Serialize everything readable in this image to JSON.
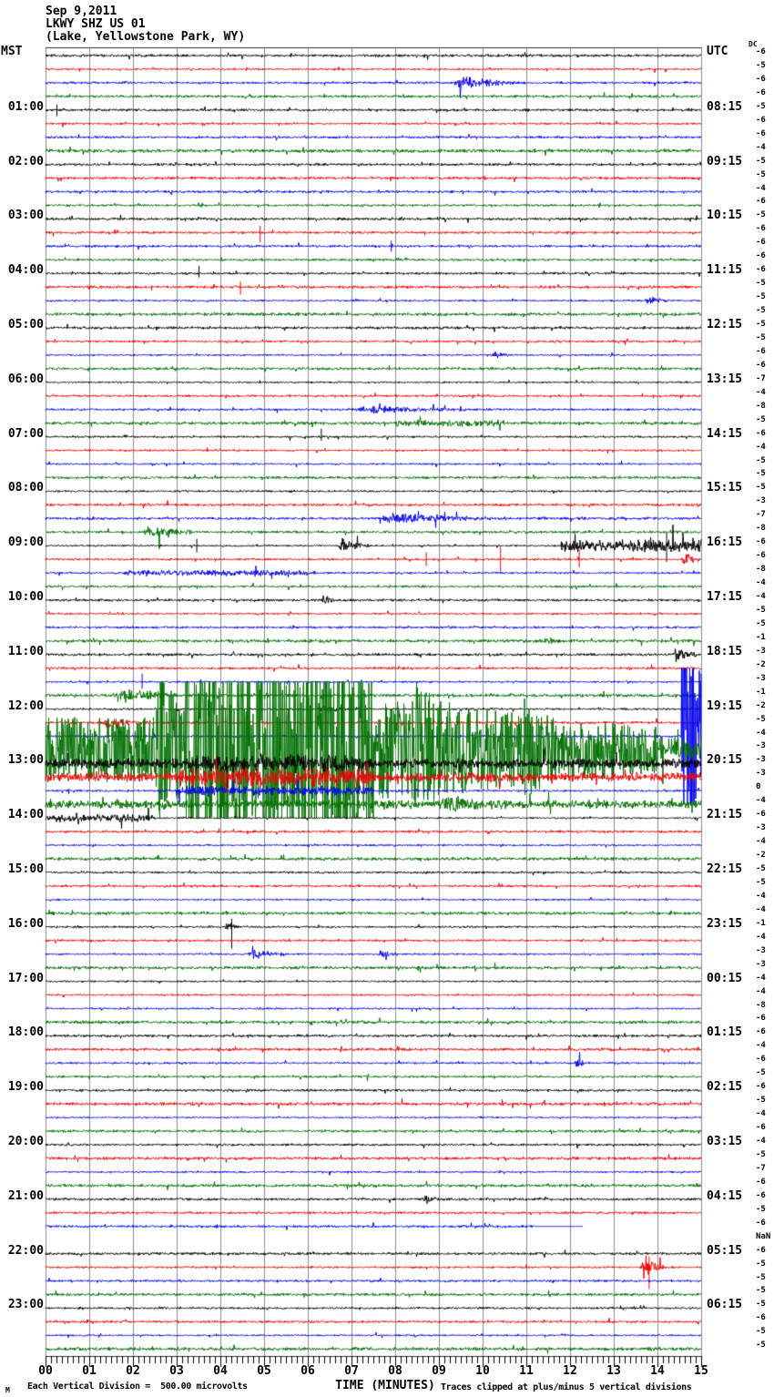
{
  "header": {
    "date": "Sep 9,2011",
    "station": "LKWY SHZ US 01",
    "location": "(Lake, Yellowstone Park, WY)"
  },
  "axes": {
    "left_tz": "MST",
    "right_tz": "UTC",
    "dc_label": "DC",
    "xlabel": "TIME (MINUTES)",
    "minute_labels": [
      "00",
      "01",
      "02",
      "03",
      "04",
      "05",
      "06",
      "07",
      "08",
      "09",
      "10",
      "11",
      "12",
      "13",
      "14",
      "15"
    ]
  },
  "footer": {
    "scale_note": "Each Vertical Division =  500.00 microvolts",
    "clip_note": "Traces clipped at plus/minus 5 vertical divisions",
    "watermark": "M"
  },
  "chart_data": {
    "type": "line",
    "subtype": "helicorder-seismogram",
    "title": "LKWY SHZ US 01 (Lake, Yellowstone Park, WY) Sep 9,2011",
    "xlabel": "TIME (MINUTES)",
    "xlim": [
      0,
      15
    ],
    "minutes_per_line": 15,
    "rows": 96,
    "first_row_start_mst": "00:00",
    "row_interval_minutes": 15,
    "division_microvolts": 500.0,
    "clip_divisions": 5,
    "grid": true,
    "trace_colors_cycle": [
      "#000000",
      "#f00000",
      "#0000ee",
      "#007000"
    ],
    "grid_color": "#8a8a8a",
    "mst_hour_labels": [
      "01:00",
      "02:00",
      "03:00",
      "04:00",
      "05:00",
      "06:00",
      "07:00",
      "08:00",
      "09:00",
      "10:00",
      "11:00",
      "12:00",
      "13:00",
      "14:00",
      "15:00",
      "16:00",
      "17:00",
      "18:00",
      "19:00",
      "20:00",
      "21:00",
      "22:00",
      "23:00"
    ],
    "utc_quarter_labels": [
      "08:15",
      "09:15",
      "10:15",
      "11:15",
      "12:15",
      "13:15",
      "14:15",
      "15:15",
      "16:15",
      "17:15",
      "18:15",
      "19:15",
      "20:15",
      "21:15",
      "22:15",
      "23:15",
      "00:15",
      "01:15",
      "02:15",
      "03:15",
      "04:15",
      "05:15",
      "06:15"
    ],
    "dc_offsets": [
      "-6",
      "-5",
      "-6",
      "-6",
      "-5",
      "-6",
      "-6",
      "-4",
      "-5",
      "-5",
      "-4",
      "-6",
      "-5",
      "-6",
      "-6",
      "-6",
      "-6",
      "-5",
      "-5",
      "-5",
      "-5",
      "-5",
      "-6",
      "-6",
      "-7",
      "-4",
      "-8",
      "-5",
      "-6",
      "-4",
      "-5",
      "-5",
      "-5",
      "-3",
      "-7",
      "-8",
      "-6",
      "-6",
      "-8",
      "-4",
      "-4",
      "-5",
      "-5",
      "-1",
      "-3",
      "-2",
      "-3",
      "-1",
      "-2",
      "-5",
      "-4",
      "-3",
      "-3",
      "-3",
      "0",
      "-4",
      "-6",
      "-3",
      "-4",
      "-2",
      "-5",
      "-5",
      "-4",
      "-4",
      "-1",
      "-4",
      "-3",
      "-3",
      "-4",
      "-4",
      "-8",
      "-6",
      "-6",
      "-4",
      "-6",
      "-5",
      "-6",
      "-5",
      "-4",
      "-6",
      "-4",
      "-5",
      "-7",
      "-6",
      "-6",
      "-5",
      "-6",
      "NaN",
      "-6",
      "-5",
      "-5",
      "-5",
      "-5",
      "-6",
      "-5",
      "-5"
    ],
    "base_noise_divisions": 0.085,
    "events": [
      {
        "row": 3,
        "type": "burst",
        "start": 9.3,
        "end": 10.8,
        "amp": 0.5
      },
      {
        "row": 5,
        "type": "spike",
        "min": 0.25,
        "up": 0.4,
        "down": 0.45
      },
      {
        "row": 14,
        "type": "spike",
        "min": 4.9,
        "up": 0.5,
        "down": 0.7
      },
      {
        "row": 15,
        "type": "spike",
        "min": 7.9,
        "up": 0.4,
        "down": 0.4
      },
      {
        "row": 17,
        "type": "spike",
        "min": 3.5,
        "up": 0.55,
        "down": 0.3
      },
      {
        "row": 18,
        "type": "spike",
        "min": 4.45,
        "up": 0.4,
        "down": 0.55
      },
      {
        "row": 19,
        "type": "burst",
        "start": 13.7,
        "end": 14.3,
        "amp": 0.35
      },
      {
        "row": 23,
        "type": "burst",
        "start": 10.2,
        "end": 10.7,
        "amp": 0.3
      },
      {
        "row": 27,
        "type": "burst",
        "start": 7.0,
        "end": 9.6,
        "amp": 0.3
      },
      {
        "row": 28,
        "type": "level",
        "start": 8.0,
        "end": 10.5,
        "amp": 0.15
      },
      {
        "row": 29,
        "type": "spike",
        "min": 6.3,
        "up": 0.6,
        "down": 0.3
      },
      {
        "row": 35,
        "type": "burst",
        "start": 7.6,
        "end": 10.2,
        "amp": 0.4
      },
      {
        "row": 36,
        "type": "burst",
        "start": 2.2,
        "end": 3.4,
        "amp": 0.5
      },
      {
        "row": 37,
        "type": "spike",
        "min": 3.45,
        "up": 0.5,
        "down": 0.5
      },
      {
        "row": 37,
        "type": "burst",
        "start": 6.7,
        "end": 7.4,
        "amp": 0.7
      },
      {
        "row": 37,
        "type": "level",
        "start": 11.8,
        "end": 15,
        "amp": 0.45
      },
      {
        "row": 37,
        "type": "spike",
        "min": 14.2,
        "up": 1.0,
        "down": 1.2
      },
      {
        "row": 38,
        "type": "spike",
        "min": 8.7,
        "up": 0.5,
        "down": 0.5
      },
      {
        "row": 38,
        "type": "spike",
        "min": 10.4,
        "up": 0.9,
        "down": 0.9
      },
      {
        "row": 38,
        "type": "spike",
        "min": 12.2,
        "up": 0.7,
        "down": 0.6
      },
      {
        "row": 38,
        "type": "burst",
        "start": 14.55,
        "end": 15,
        "amp": 0.5
      },
      {
        "row": 39,
        "type": "level",
        "start": 1.8,
        "end": 6.2,
        "amp": 0.15
      },
      {
        "row": 41,
        "type": "burst",
        "start": 6.3,
        "end": 6.7,
        "amp": 0.35
      },
      {
        "row": 44,
        "type": "burst",
        "start": 11.4,
        "end": 11.8,
        "amp": 0.3
      },
      {
        "row": 45,
        "type": "burst",
        "start": 14.35,
        "end": 14.95,
        "amp": 0.7
      },
      {
        "row": 47,
        "type": "spike",
        "min": 2.2,
        "up": 0.6,
        "down": 0.5
      },
      {
        "row": 48,
        "type": "burst",
        "start": 1.5,
        "end": 3.1,
        "amp": 0.5
      },
      {
        "row": 49,
        "type": "burst",
        "start": 6.2,
        "end": 7.0,
        "amp": 0.3
      },
      {
        "row": 50,
        "type": "burst",
        "start": 1.2,
        "end": 2.4,
        "amp": 0.3
      },
      {
        "row": 51,
        "type": "ramp",
        "start": 14.55,
        "end": 15,
        "amp_start": 6.5,
        "amp_end": 3.5
      },
      {
        "row": 52,
        "type": "level",
        "start": 0,
        "end": 3.2,
        "amp": 1.5
      },
      {
        "row": 52,
        "type": "burst",
        "start": 2.5,
        "end": 3.3,
        "amp": 3.0
      },
      {
        "row": 52,
        "type": "level",
        "start": 3.2,
        "end": 7.5,
        "amp": 5.5
      },
      {
        "row": 52,
        "type": "ramp",
        "start": 7.5,
        "end": 15,
        "amp_start": 2.4,
        "amp_end": 0.9
      },
      {
        "row": 52,
        "type": "burst",
        "start": 8.3,
        "end": 9.6,
        "amp": 1.2
      },
      {
        "row": 52,
        "type": "burst",
        "start": 10.8,
        "end": 11.6,
        "amp": 0.8
      },
      {
        "row": 53,
        "type": "level",
        "start": 0,
        "end": 15,
        "amp": 0.3
      },
      {
        "row": 53,
        "type": "level",
        "start": 3.2,
        "end": 7.5,
        "amp": 0.35
      },
      {
        "row": 54,
        "type": "level",
        "start": 0,
        "end": 15,
        "amp": 0.28
      },
      {
        "row": 54,
        "type": "level",
        "start": 3.0,
        "end": 7.5,
        "amp": 0.45
      },
      {
        "row": 55,
        "type": "level",
        "start": 3.0,
        "end": 7.5,
        "amp": 0.3
      },
      {
        "row": 56,
        "type": "level",
        "start": 0,
        "end": 15,
        "amp": 0.22
      },
      {
        "row": 56,
        "type": "burst",
        "start": 9.0,
        "end": 10.6,
        "amp": 0.45
      },
      {
        "row": 57,
        "type": "level",
        "start": 0,
        "end": 2.5,
        "amp": 0.25
      },
      {
        "row": 65,
        "type": "burst",
        "start": 4.1,
        "end": 4.5,
        "amp": 0.4
      },
      {
        "row": 65,
        "type": "spike",
        "min": 4.25,
        "up": 0.6,
        "down": 1.6
      },
      {
        "row": 67,
        "type": "burst",
        "start": 4.6,
        "end": 5.7,
        "amp": 0.35
      },
      {
        "row": 67,
        "type": "burst",
        "start": 7.6,
        "end": 8.1,
        "amp": 0.3
      },
      {
        "row": 75,
        "type": "burst",
        "start": 12.1,
        "end": 12.5,
        "amp": 0.3
      },
      {
        "row": 85,
        "type": "burst",
        "start": 8.6,
        "end": 9.1,
        "amp": 0.4
      },
      {
        "row": 90,
        "type": "burst",
        "start": 13.6,
        "end": 14.2,
        "amp": 1.0
      },
      {
        "row": 90,
        "type": "spike",
        "min": 13.8,
        "up": 0.8,
        "down": 1.6
      }
    ],
    "row_overrides": [
      {
        "row": 87,
        "flat_from": 11.2,
        "gap_from": 12.3
      },
      {
        "row": 88,
        "missing": true
      }
    ]
  }
}
